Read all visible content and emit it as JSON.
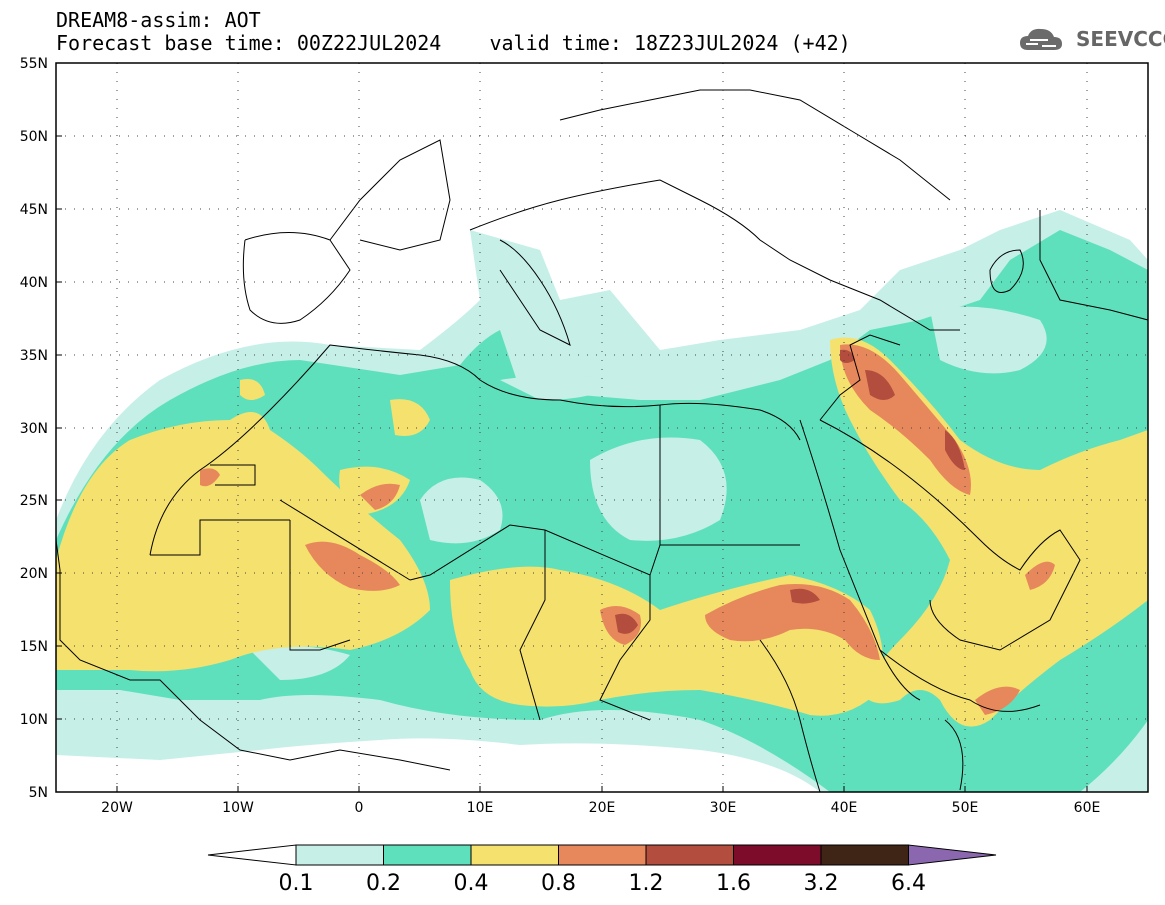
{
  "title": {
    "line1": "DREAM8-assim: AOT",
    "line2": "Forecast base time: 00Z22JUL2024    valid time: 18Z23JUL2024 (+42)"
  },
  "logo": {
    "text": "SEEVCCC",
    "icon": "cloud-icon"
  },
  "map": {
    "lon_range": [
      -25,
      65
    ],
    "lat_range": [
      5,
      55
    ],
    "lat_labels": [
      "55N",
      "50N",
      "45N",
      "40N",
      "35N",
      "30N",
      "25N",
      "20N",
      "15N",
      "10N",
      "5N"
    ],
    "lat_values": [
      55,
      50,
      45,
      40,
      35,
      30,
      25,
      20,
      15,
      10,
      5
    ],
    "lon_labels": [
      "20W",
      "10W",
      "0",
      "10E",
      "20E",
      "30E",
      "40E",
      "50E",
      "60E"
    ],
    "lon_values": [
      -20,
      -10,
      0,
      10,
      20,
      30,
      40,
      50,
      60
    ],
    "gridlines": "dotted"
  },
  "colorbar": {
    "levels": [
      "0.1",
      "0.2",
      "0.4",
      "0.8",
      "1.2",
      "1.6",
      "3.2",
      "6.4"
    ],
    "colors": [
      "#ffffff",
      "#c6efe8",
      "#5fe0bc",
      "#f5e16e",
      "#e7885c",
      "#b34d3d",
      "#7c0c2a",
      "#3f2515",
      "#8a67ae"
    ]
  }
}
